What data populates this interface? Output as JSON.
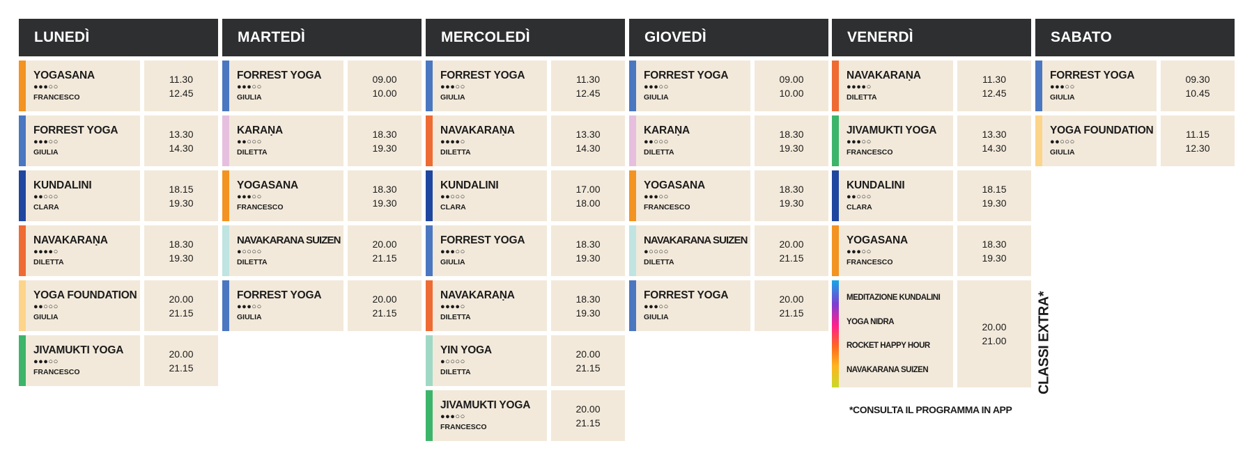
{
  "colors": {
    "forrest": "#4a77c0",
    "yogasana": "#f29322",
    "kundalini": "#1f47a0",
    "navakarana": "#ee6b34",
    "yoga_foundation": "#fcd58b",
    "jivamukti": "#3cb56a",
    "karana": "#e6bfdf",
    "suizen": "#bfe4e1",
    "yin": "#9fd9c5",
    "header_bg": "#2d2f31",
    "card_bg": "#f2e9da"
  },
  "days": [
    {
      "name": "LUNEDÌ",
      "classes": [
        {
          "name": "YOGASANA",
          "dots": "●●●○○",
          "teacher": "FRANCESCO",
          "start": "11.30",
          "end": "12.45",
          "color": "#f29322"
        },
        {
          "name": "FORREST YOGA",
          "dots": "●●●○○",
          "teacher": "GIULIA",
          "start": "13.30",
          "end": "14.30",
          "color": "#4a77c0"
        },
        {
          "name": "KUNDALINI",
          "dots": "●●○○○",
          "teacher": "CLARA",
          "start": "18.15",
          "end": "19.30",
          "color": "#1f47a0"
        },
        {
          "name": "NAVAKARAṆA",
          "dots": "●●●●○",
          "teacher": "DILETTA",
          "start": "18.30",
          "end": "19.30",
          "color": "#ee6b34"
        },
        {
          "name": "YOGA FOUNDATION",
          "dots": "●●○○○",
          "teacher": "GIULIA",
          "start": "20.00",
          "end": "21.15",
          "color": "#fcd58b"
        },
        {
          "name": "JIVAMUKTI YOGA",
          "dots": "●●●○○",
          "teacher": "FRANCESCO",
          "start": "20.00",
          "end": "21.15",
          "color": "#3cb56a"
        }
      ]
    },
    {
      "name": "MARTEDÌ",
      "classes": [
        {
          "name": "FORREST YOGA",
          "dots": "●●●○○",
          "teacher": "GIULIA",
          "start": "09.00",
          "end": "10.00",
          "color": "#4a77c0"
        },
        {
          "name": "KARAṆA",
          "dots": "●●○○○",
          "teacher": "DILETTA",
          "start": "18.30",
          "end": "19.30",
          "color": "#e6bfdf"
        },
        {
          "name": "YOGASANA",
          "dots": "●●●○○",
          "teacher": "FRANCESCO",
          "start": "18.30",
          "end": "19.30",
          "color": "#f29322"
        },
        {
          "name": "NAVAKARANA SUIZEN",
          "dots": "●○○○○",
          "teacher": "DILETTA",
          "start": "20.00",
          "end": "21.15",
          "color": "#bfe4e1"
        },
        {
          "name": "FORREST YOGA",
          "dots": "●●●○○",
          "teacher": "GIULIA",
          "start": "20.00",
          "end": "21.15",
          "color": "#4a77c0"
        }
      ]
    },
    {
      "name": "MERCOLEDÌ",
      "classes": [
        {
          "name": "FORREST YOGA",
          "dots": "●●●○○",
          "teacher": "GIULIA",
          "start": "11.30",
          "end": "12.45",
          "color": "#4a77c0"
        },
        {
          "name": "NAVAKARAṆA",
          "dots": "●●●●○",
          "teacher": "DILETTA",
          "start": "13.30",
          "end": "14.30",
          "color": "#ee6b34"
        },
        {
          "name": "KUNDALINI",
          "dots": "●●○○○",
          "teacher": "CLARA",
          "start": "17.00",
          "end": "18.00",
          "color": "#1f47a0"
        },
        {
          "name": "FORREST YOGA",
          "dots": "●●●○○",
          "teacher": "GIULIA",
          "start": "18.30",
          "end": "19.30",
          "color": "#4a77c0"
        },
        {
          "name": "NAVAKARAṆA",
          "dots": "●●●●○",
          "teacher": "DILETTA",
          "start": "18.30",
          "end": "19.30",
          "color": "#ee6b34"
        },
        {
          "name": "YIN YOGA",
          "dots": "●○○○○",
          "teacher": "DILETTA",
          "start": "20.00",
          "end": "21.15",
          "color": "#9fd9c5"
        },
        {
          "name": "JIVAMUKTI YOGA",
          "dots": "●●●○○",
          "teacher": "FRANCESCO",
          "start": "20.00",
          "end": "21.15",
          "color": "#3cb56a"
        }
      ]
    },
    {
      "name": "GIOVEDÌ",
      "classes": [
        {
          "name": "FORREST YOGA",
          "dots": "●●●○○",
          "teacher": "GIULIA",
          "start": "09.00",
          "end": "10.00",
          "color": "#4a77c0"
        },
        {
          "name": "KARAṆA",
          "dots": "●●○○○",
          "teacher": "DILETTA",
          "start": "18.30",
          "end": "19.30",
          "color": "#e6bfdf"
        },
        {
          "name": "YOGASANA",
          "dots": "●●●○○",
          "teacher": "FRANCESCO",
          "start": "18.30",
          "end": "19.30",
          "color": "#f29322"
        },
        {
          "name": "NAVAKARANA SUIZEN",
          "dots": "●○○○○",
          "teacher": "DILETTA",
          "start": "20.00",
          "end": "21.15",
          "color": "#bfe4e1"
        },
        {
          "name": "FORREST YOGA",
          "dots": "●●●○○",
          "teacher": "GIULIA",
          "start": "20.00",
          "end": "21.15",
          "color": "#4a77c0"
        }
      ]
    },
    {
      "name": "VENERDÌ",
      "classes": [
        {
          "name": "NAVAKARAṆA",
          "dots": "●●●●○",
          "teacher": "DILETTA",
          "start": "11.30",
          "end": "12.45",
          "color": "#ee6b34"
        },
        {
          "name": "JIVAMUKTI YOGA",
          "dots": "●●●○○",
          "teacher": "FRANCESCO",
          "start": "13.30",
          "end": "14.30",
          "color": "#3cb56a"
        },
        {
          "name": "KUNDALINI",
          "dots": "●●○○○",
          "teacher": "CLARA",
          "start": "18.15",
          "end": "19.30",
          "color": "#1f47a0"
        },
        {
          "name": "YOGASANA",
          "dots": "●●●○○",
          "teacher": "FRANCESCO",
          "start": "18.30",
          "end": "19.30",
          "color": "#f29322"
        }
      ],
      "extra": {
        "items": [
          "MEDITAZIONE KUNDALINI",
          "YOGA NIDRA",
          "ROCKET HAPPY HOUR",
          "NAVAKARANA SUIZEN"
        ],
        "start": "20.00",
        "end": "21.00"
      }
    },
    {
      "name": "SABATO",
      "classes": [
        {
          "name": "FORREST YOGA",
          "dots": "●●●○○",
          "teacher": "GIULIA",
          "start": "09.30",
          "end": "10.45",
          "color": "#4a77c0"
        },
        {
          "name": "YOGA FOUNDATION",
          "dots": "●●○○○",
          "teacher": "GIULIA",
          "start": "11.15",
          "end": "12.30",
          "color": "#fcd58b"
        }
      ]
    }
  ],
  "extra_label": "CLASSI EXTRA*",
  "footnote": "*CONSULTA IL PROGRAMMA IN APP"
}
